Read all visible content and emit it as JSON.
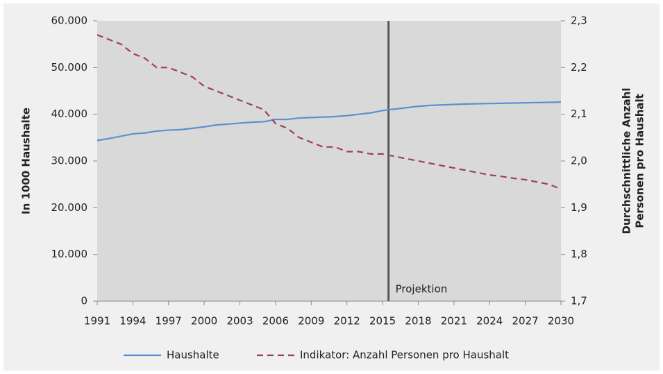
{
  "chart_data": {
    "type": "line",
    "x": [
      1991,
      1992,
      1993,
      1994,
      1995,
      1996,
      1997,
      1998,
      1999,
      2000,
      2001,
      2002,
      2003,
      2004,
      2005,
      2006,
      2007,
      2008,
      2009,
      2010,
      2011,
      2012,
      2013,
      2014,
      2015,
      2016,
      2017,
      2018,
      2019,
      2020,
      2021,
      2022,
      2023,
      2024,
      2025,
      2026,
      2027,
      2028,
      2029,
      2030
    ],
    "xlim": [
      1991,
      2030
    ],
    "xticks": [
      1991,
      1994,
      1997,
      2000,
      2003,
      2006,
      2009,
      2012,
      2015,
      2018,
      2021,
      2024,
      2027,
      2030
    ],
    "ylabel": "In 1000 Haushalte",
    "y2label": [
      "Durchschnittliche Anzahl",
      "Personen pro Haushalt"
    ],
    "ylim": [
      0,
      60000
    ],
    "yticks": [
      0,
      {
        "value": 10000,
        "label": "10.000"
      },
      {
        "value": 20000,
        "label": "20.000"
      },
      {
        "value": 30000,
        "label": "30.000"
      },
      {
        "value": 40000,
        "label": "40.000"
      },
      {
        "value": 50000,
        "label": "50.000"
      },
      {
        "value": 60000,
        "label": "60.000"
      }
    ],
    "y2lim": [
      1.7,
      2.3
    ],
    "y2ticks": [
      {
        "value": 1.7,
        "label": "1,7"
      },
      {
        "value": 1.8,
        "label": "1,8"
      },
      {
        "value": 1.9,
        "label": "1,9"
      },
      {
        "value": 2.0,
        "label": "2,0"
      },
      {
        "value": 2.1,
        "label": "2,1"
      },
      {
        "value": 2.2,
        "label": "2,2"
      },
      {
        "value": 2.3,
        "label": "2,3"
      }
    ],
    "series": [
      {
        "name": "Haushalte",
        "color": "#5b8fd0",
        "dashed": false,
        "values": [
          34400,
          34800,
          35300,
          35800,
          36000,
          36400,
          36600,
          36700,
          37000,
          37300,
          37700,
          37900,
          38100,
          38300,
          38400,
          38900,
          38900,
          39200,
          39300,
          39400,
          39500,
          39700,
          40000,
          40300,
          40800,
          41100,
          41400,
          41700,
          41900,
          42000,
          42100,
          42200,
          42250,
          42300,
          42350,
          42400,
          42450,
          42500,
          42550,
          42600
        ]
      },
      {
        "name": "Indikator: Anzahl Personen pro Haushalt",
        "color": "#a0404f",
        "dashed": true,
        "axis": "y2",
        "values": [
          2.27,
          2.26,
          2.25,
          2.23,
          2.22,
          2.2,
          2.2,
          2.19,
          2.18,
          2.16,
          2.15,
          2.14,
          2.13,
          2.12,
          2.11,
          2.08,
          2.07,
          2.05,
          2.04,
          2.03,
          2.03,
          2.02,
          2.02,
          2.015,
          2.015,
          2.01,
          2.005,
          2.0,
          1.995,
          1.99,
          1.985,
          1.98,
          1.975,
          1.97,
          1.967,
          1.963,
          1.96,
          1.955,
          1.95,
          1.94
        ]
      }
    ],
    "annotation": {
      "x": 2015.5,
      "text": "Projektion"
    }
  }
}
